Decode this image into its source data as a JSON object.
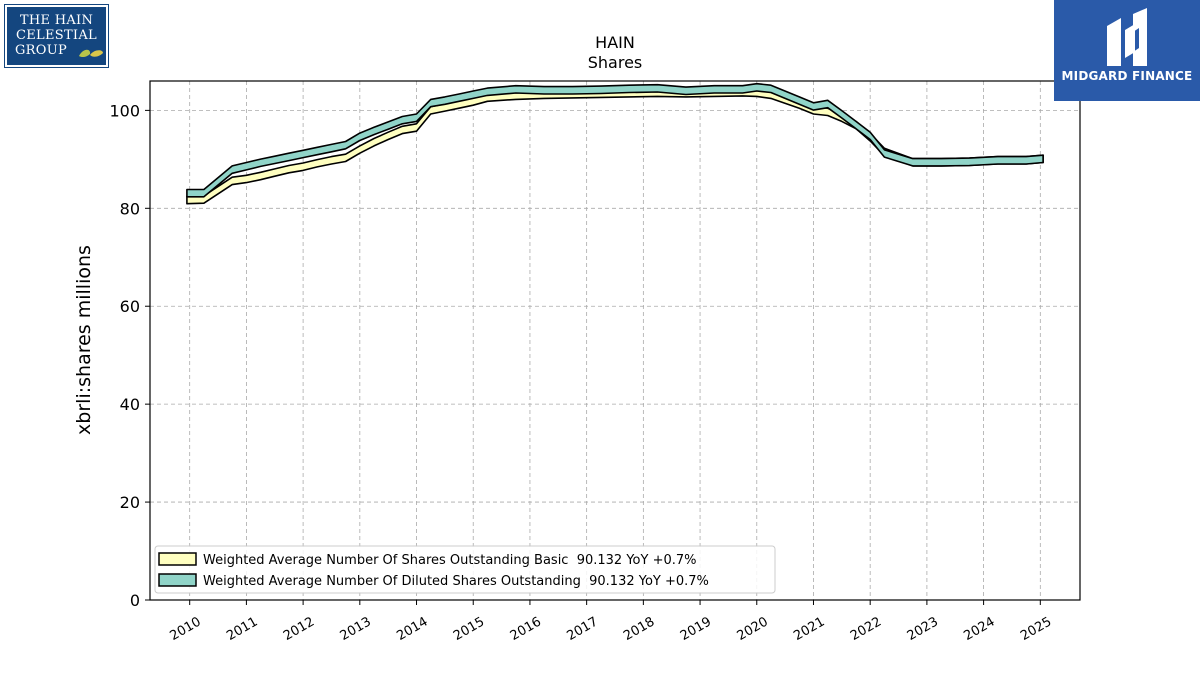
{
  "logos": {
    "left": {
      "line1": "THE HAIN",
      "line2": "CELESTIAL",
      "line3": "GROUP",
      "bg": "#14467f"
    },
    "right": {
      "name": "MIDGARD FINANCE",
      "bg": "#2a5aa9"
    }
  },
  "chart_data": {
    "type": "area",
    "title": "HAIN",
    "subtitle": "Shares",
    "xlabel": "",
    "ylabel": "xbrli:shares millions",
    "xlim": [
      2009.3,
      2025.7
    ],
    "ylim": [
      0,
      106
    ],
    "yticks": [
      0,
      20,
      40,
      60,
      80,
      100
    ],
    "xticks": [
      2010,
      2011,
      2012,
      2013,
      2014,
      2015,
      2016,
      2017,
      2018,
      2019,
      2020,
      2021,
      2022,
      2023,
      2024,
      2025
    ],
    "grid": true,
    "legend_position": "lower-left",
    "band_width": 1.5,
    "series": [
      {
        "name": "Weighted Average Number Of Shares Outstanding Basic  90.132 YoY +0.7%",
        "color": "#ffffc0",
        "x": [
          2009.95,
          2010.25,
          2010.75,
          2011.0,
          2011.25,
          2011.5,
          2011.75,
          2012.0,
          2012.25,
          2012.5,
          2012.75,
          2013.0,
          2013.25,
          2013.5,
          2013.75,
          2014.0,
          2014.25,
          2014.5,
          2014.75,
          2015.0,
          2015.25,
          2015.75,
          2016.25,
          2016.75,
          2017.25,
          2017.75,
          2018.25,
          2018.75,
          2019.25,
          2019.75,
          2020.0,
          2020.25,
          2020.75,
          2021.0,
          2021.25,
          2021.5,
          2021.75,
          2022.0,
          2022.25,
          2022.75,
          2023.25,
          2023.75,
          2024.25,
          2024.75,
          2025.05
        ],
        "y": [
          81.7,
          81.8,
          85.6,
          86.0,
          86.6,
          87.3,
          88.0,
          88.5,
          89.2,
          89.8,
          90.3,
          92.0,
          93.5,
          94.8,
          96.0,
          96.5,
          100.0,
          100.6,
          101.2,
          101.8,
          102.6,
          103.0,
          103.2,
          103.3,
          103.4,
          103.5,
          103.6,
          103.5,
          103.6,
          103.7,
          103.6,
          103.2,
          101.2,
          100.0,
          99.7,
          98.5,
          97.0,
          94.5,
          91.5,
          89.4,
          89.4,
          89.5,
          89.8,
          89.8,
          90.1
        ]
      },
      {
        "name": "Weighted Average Number Of Diluted Shares Outstanding  90.132 YoY +0.7%",
        "color": "#90d4c8",
        "x": [
          2009.95,
          2010.25,
          2010.75,
          2011.0,
          2011.25,
          2011.5,
          2011.75,
          2012.0,
          2012.25,
          2012.5,
          2012.75,
          2013.0,
          2013.25,
          2013.5,
          2013.75,
          2014.0,
          2014.25,
          2014.5,
          2014.75,
          2015.0,
          2015.25,
          2015.75,
          2016.25,
          2016.75,
          2017.25,
          2017.75,
          2018.25,
          2018.75,
          2019.25,
          2019.75,
          2020.0,
          2020.25,
          2020.75,
          2021.0,
          2021.25,
          2021.5,
          2021.75,
          2022.0,
          2022.25,
          2022.75,
          2023.25,
          2023.75,
          2024.25,
          2024.75,
          2025.05
        ],
        "y": [
          83.1,
          83.1,
          87.9,
          88.6,
          89.3,
          89.9,
          90.5,
          91.1,
          91.7,
          92.3,
          92.9,
          94.6,
          95.8,
          96.9,
          98.0,
          98.5,
          101.5,
          102.0,
          102.6,
          103.2,
          103.8,
          104.3,
          104.1,
          104.1,
          104.2,
          104.4,
          104.5,
          104.0,
          104.3,
          104.3,
          104.7,
          104.4,
          102.0,
          100.8,
          101.3,
          99.2,
          97.0,
          94.8,
          91.2,
          89.4,
          89.4,
          89.5,
          89.8,
          89.8,
          90.1
        ]
      }
    ]
  }
}
